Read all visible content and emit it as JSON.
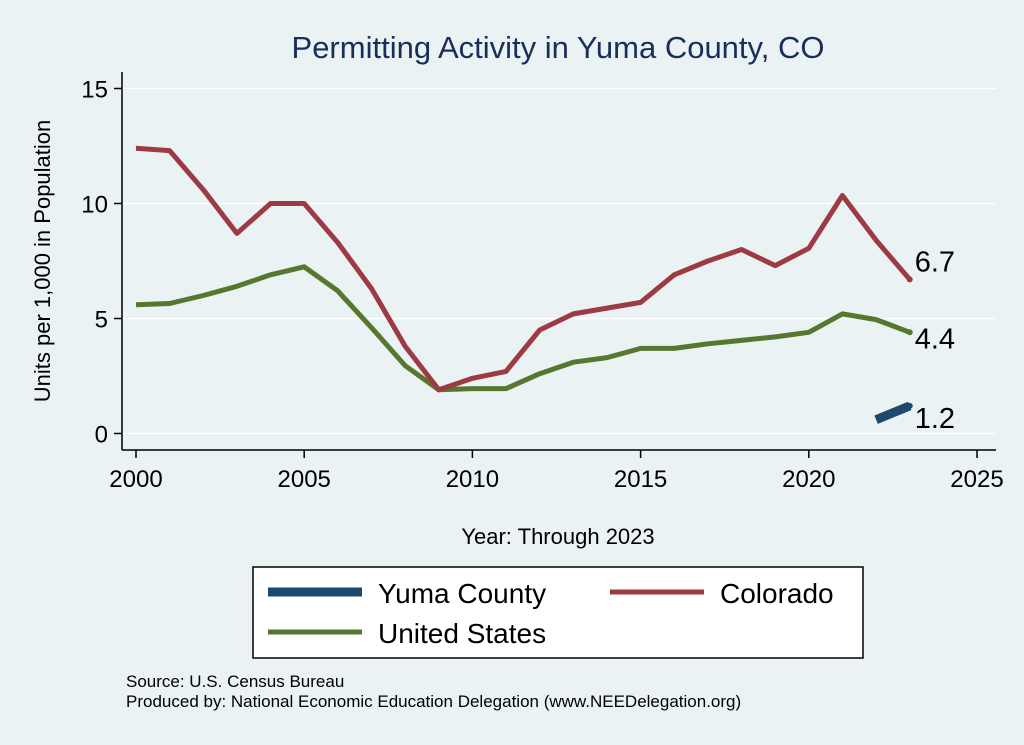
{
  "chart_data": {
    "type": "line",
    "title": "Permitting Activity in Yuma County, CO",
    "xlabel": "Year: Through 2023",
    "ylabel": "Units per 1,000 in Population",
    "xlim": [
      2000,
      2025
    ],
    "ylim": [
      0,
      15
    ],
    "x_ticks": [
      "2000",
      "2005",
      "2010",
      "2015",
      "2020",
      "2025"
    ],
    "y_ticks": [
      "0",
      "5",
      "10",
      "15"
    ],
    "grid": true,
    "series": [
      {
        "name": "Yuma County",
        "color": "#1c4a6e",
        "x": [
          2022,
          2023
        ],
        "values": [
          0.6,
          1.2
        ],
        "end_label": "1.2"
      },
      {
        "name": "Colorado",
        "color": "#9e3a43",
        "x": [
          2000,
          2001,
          2002,
          2003,
          2004,
          2005,
          2006,
          2007,
          2008,
          2009,
          2010,
          2011,
          2012,
          2013,
          2014,
          2015,
          2016,
          2017,
          2018,
          2019,
          2020,
          2021,
          2022,
          2023
        ],
        "values": [
          12.4,
          12.3,
          10.6,
          8.7,
          10.0,
          10.0,
          8.3,
          6.3,
          3.8,
          1.9,
          2.4,
          2.7,
          4.5,
          5.2,
          5.45,
          5.7,
          6.9,
          7.5,
          8.0,
          7.3,
          8.05,
          10.35,
          8.4,
          6.7
        ],
        "end_label": "6.7"
      },
      {
        "name": "United States",
        "color": "#56772f",
        "x": [
          2000,
          2001,
          2002,
          2003,
          2004,
          2005,
          2006,
          2007,
          2008,
          2009,
          2010,
          2011,
          2012,
          2013,
          2014,
          2015,
          2016,
          2017,
          2018,
          2019,
          2020,
          2021,
          2022,
          2023
        ],
        "values": [
          5.6,
          5.65,
          6.0,
          6.4,
          6.9,
          7.25,
          6.2,
          4.6,
          2.95,
          1.9,
          1.95,
          1.95,
          2.6,
          3.1,
          3.3,
          3.7,
          3.7,
          3.9,
          4.05,
          4.2,
          4.4,
          5.2,
          4.95,
          4.4
        ],
        "end_label": "4.4"
      }
    ],
    "legend": [
      "Yuma County",
      "Colorado",
      "United States"
    ]
  },
  "footer": {
    "source": "Source: U.S. Census Bureau",
    "produced": "Produced by: National Economic Education Delegation (www.NEEDelegation.org)"
  }
}
